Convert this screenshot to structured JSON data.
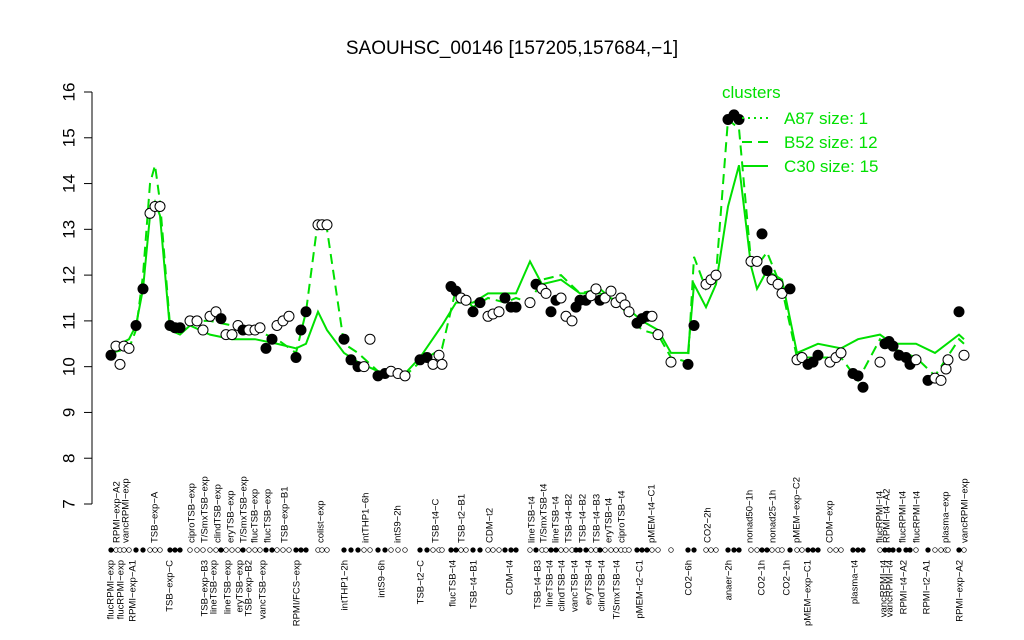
{
  "chart_data": {
    "type": "scatter",
    "title": "SAOUHSC_00146 [157205,157684,−1]",
    "ylim": [
      7,
      16
    ],
    "yticks": [
      7,
      8,
      9,
      10,
      11,
      12,
      13,
      14,
      15,
      16
    ],
    "xlim": [
      0,
      860
    ],
    "x": [
      3,
      8,
      12,
      16,
      21,
      28,
      35,
      42,
      47,
      52,
      62,
      67,
      72,
      82,
      89,
      95,
      102,
      108,
      113,
      118,
      124,
      130,
      135,
      141,
      147,
      152,
      158,
      164,
      169,
      175,
      181,
      188,
      193,
      198,
      210,
      214,
      219,
      236,
      243,
      250,
      256,
      262,
      270,
      277,
      283,
      290,
      297,
      312,
      319,
      325,
      331,
      334,
      343,
      348,
      353,
      358,
      365,
      372,
      380,
      385,
      391,
      397,
      403,
      408,
      422,
      428,
      434,
      438,
      443,
      448,
      453,
      458,
      464,
      468,
      472,
      478,
      483,
      488,
      492,
      497,
      503,
      508,
      513,
      517,
      521,
      529,
      534,
      539,
      544,
      550,
      563,
      580,
      586,
      598,
      603,
      608,
      620,
      626,
      631,
      643,
      649,
      654,
      659,
      664,
      670,
      674,
      682,
      689,
      694,
      700,
      705,
      710,
      722,
      728,
      733,
      745,
      750,
      755,
      772,
      777,
      781,
      785,
      791,
      798,
      802,
      808,
      820,
      827,
      833,
      838,
      840,
      851,
      856
    ],
    "values": [
      10.25,
      10.45,
      10.05,
      10.45,
      10.4,
      10.9,
      11.7,
      13.35,
      13.5,
      13.5,
      10.9,
      10.85,
      10.85,
      11.0,
      11.0,
      10.8,
      11.1,
      11.2,
      11.05,
      10.7,
      10.7,
      10.9,
      10.8,
      10.8,
      10.8,
      10.85,
      10.4,
      10.6,
      10.9,
      11.0,
      11.1,
      10.2,
      10.8,
      11.2,
      13.1,
      13.1,
      13.1,
      10.6,
      10.15,
      10.0,
      10.0,
      10.6,
      9.8,
      9.85,
      9.9,
      9.85,
      9.8,
      10.15,
      10.2,
      10.05,
      10.25,
      10.05,
      11.75,
      11.65,
      11.5,
      11.45,
      11.2,
      11.4,
      11.1,
      11.15,
      11.2,
      11.5,
      11.3,
      11.3,
      11.4,
      11.8,
      11.7,
      11.6,
      11.2,
      11.45,
      11.5,
      11.1,
      11.0,
      11.3,
      11.45,
      11.45,
      11.55,
      11.7,
      11.45,
      11.5,
      11.65,
      11.4,
      11.5,
      11.35,
      11.2,
      10.95,
      11.05,
      11.1,
      11.1,
      10.7,
      10.1,
      10.05,
      10.9,
      11.8,
      11.9,
      12.0,
      15.4,
      15.5,
      15.4,
      12.3,
      12.3,
      12.9,
      12.1,
      11.9,
      11.8,
      11.6,
      11.7,
      10.15,
      10.2,
      10.05,
      10.1,
      10.25,
      10.1,
      10.2,
      10.3,
      9.85,
      9.8,
      9.55,
      10.1,
      10.5,
      10.55,
      10.45,
      10.25,
      10.2,
      10.05,
      10.15,
      9.7,
      9.75,
      9.7,
      9.95,
      10.15,
      11.2,
      10.25
    ],
    "filled": [
      true,
      false,
      false,
      false,
      false,
      true,
      true,
      false,
      false,
      false,
      true,
      true,
      true,
      false,
      false,
      false,
      false,
      false,
      true,
      false,
      false,
      false,
      true,
      false,
      false,
      false,
      true,
      true,
      false,
      false,
      false,
      true,
      true,
      true,
      false,
      false,
      false,
      true,
      true,
      true,
      false,
      false,
      true,
      true,
      false,
      false,
      false,
      true,
      true,
      false,
      false,
      false,
      true,
      true,
      false,
      false,
      true,
      true,
      false,
      false,
      false,
      true,
      true,
      true,
      false,
      true,
      false,
      false,
      true,
      true,
      false,
      false,
      false,
      true,
      true,
      true,
      false,
      false,
      true,
      false,
      false,
      false,
      false,
      false,
      false,
      true,
      true,
      true,
      false,
      false,
      false,
      true,
      true,
      false,
      false,
      false,
      true,
      true,
      true,
      false,
      false,
      true,
      true,
      false,
      false,
      false,
      true,
      false,
      false,
      true,
      true,
      true,
      false,
      false,
      false,
      true,
      true,
      true,
      false,
      true,
      true,
      true,
      true,
      true,
      true,
      false,
      true,
      false,
      false,
      false,
      false,
      true,
      false
    ],
    "legend_title": "clusters",
    "series": [
      {
        "name": "A87 size: 1",
        "color": "#00e000",
        "dash": "dotted",
        "x": [
          626
        ],
        "values": [
          15.5
        ]
      },
      {
        "name": "B52 size: 12",
        "color": "#00e000",
        "dash": "dashed",
        "x": [
          3,
          12,
          21,
          28,
          35,
          42,
          47,
          52,
          62,
          72,
          82,
          102,
          124,
          147,
          169,
          188,
          198,
          210,
          219,
          236,
          250,
          270,
          297,
          312,
          334,
          348,
          365,
          380,
          397,
          408,
          422,
          434,
          453,
          472,
          492,
          513,
          534,
          550,
          563,
          580,
          586,
          598,
          608,
          620,
          631,
          643,
          649,
          659,
          674,
          689,
          710,
          733,
          750,
          772,
          785,
          808,
          827,
          851,
          856
        ],
        "values": [
          10.3,
          10.35,
          10.4,
          10.8,
          12.0,
          14.0,
          14.4,
          13.6,
          10.9,
          10.9,
          11.0,
          11.0,
          10.9,
          10.8,
          10.6,
          10.3,
          11.2,
          13.2,
          13.0,
          10.5,
          10.3,
          9.9,
          9.8,
          10.1,
          10.4,
          11.7,
          11.3,
          11.5,
          11.4,
          11.5,
          11.4,
          11.9,
          12.0,
          11.6,
          11.7,
          11.3,
          10.8,
          10.7,
          10.2,
          10.1,
          12.4,
          11.7,
          12.0,
          15.4,
          15.2,
          12.3,
          12.2,
          12.5,
          11.7,
          10.2,
          10.2,
          10.2,
          9.7,
          10.6,
          10.4,
          10.2,
          9.8,
          10.6,
          10.5
        ]
      },
      {
        "name": "C30 size: 15",
        "color": "#00e000",
        "dash": "solid",
        "x": [
          3,
          12,
          21,
          28,
          35,
          42,
          47,
          52,
          62,
          72,
          82,
          102,
          124,
          147,
          169,
          188,
          198,
          210,
          219,
          236,
          250,
          270,
          297,
          312,
          334,
          348,
          365,
          380,
          397,
          408,
          422,
          434,
          453,
          472,
          492,
          513,
          534,
          550,
          563,
          580,
          586,
          598,
          608,
          620,
          631,
          643,
          649,
          659,
          674,
          689,
          710,
          733,
          750,
          772,
          785,
          808,
          827,
          851,
          856
        ],
        "values": [
          10.4,
          10.5,
          10.6,
          10.9,
          11.7,
          13.3,
          13.6,
          13.3,
          10.8,
          10.7,
          10.9,
          10.7,
          10.6,
          10.6,
          10.5,
          10.4,
          10.5,
          11.2,
          10.8,
          10.3,
          10.1,
          9.9,
          9.85,
          10.2,
          10.9,
          11.4,
          11.4,
          11.6,
          11.6,
          11.6,
          12.3,
          11.8,
          11.9,
          11.6,
          11.6,
          11.4,
          11.0,
          10.8,
          10.3,
          10.3,
          11.8,
          11.3,
          11.8,
          13.5,
          14.4,
          12.2,
          11.7,
          12.1,
          11.9,
          10.3,
          10.5,
          10.4,
          10.6,
          10.7,
          10.5,
          10.5,
          10.3,
          10.7,
          10.6
        ]
      }
    ],
    "top_labels": [
      {
        "x": 9,
        "label": "RPMI−exp−A2"
      },
      {
        "x": 18,
        "label": "vancRPMI−exp"
      },
      {
        "x": 47,
        "label": "TSB−exp−A"
      },
      {
        "x": 84,
        "label": "ciproTSB−exp"
      },
      {
        "x": 97,
        "label": "T/SmxTSB−exp"
      },
      {
        "x": 110,
        "label": "clindTSB−exp"
      },
      {
        "x": 123,
        "label": "eryTSB−exp"
      },
      {
        "x": 136,
        "label": "T/SmxTSB−exp"
      },
      {
        "x": 147,
        "label": "flucTSB−exp"
      },
      {
        "x": 160,
        "label": "flucTSB−exp"
      },
      {
        "x": 177,
        "label": "TSB−exp−B1"
      },
      {
        "x": 213,
        "label": "colist−exp"
      },
      {
        "x": 258,
        "label": "intTHP1−6h"
      },
      {
        "x": 290,
        "label": "intS9−2h"
      },
      {
        "x": 328,
        "label": "TSB−t4−C"
      },
      {
        "x": 354,
        "label": "TSB−t2−B1"
      },
      {
        "x": 382,
        "label": "CDM−t2"
      },
      {
        "x": 424,
        "label": "lineTSB−t4"
      },
      {
        "x": 436,
        "label": "T/SmxTSB−t4"
      },
      {
        "x": 448,
        "label": "lineTSB−t4"
      },
      {
        "x": 461,
        "label": "TSB−t4−B2"
      },
      {
        "x": 475,
        "label": "TSB−t4−B2"
      },
      {
        "x": 489,
        "label": "TSB−t4−B3"
      },
      {
        "x": 501,
        "label": "eryTSB−t4"
      },
      {
        "x": 514,
        "label": "ciproTSB−t4"
      },
      {
        "x": 544,
        "label": "pMEM−t4−C1"
      },
      {
        "x": 600,
        "label": "CO2−2h"
      },
      {
        "x": 642,
        "label": "nonad50−1h"
      },
      {
        "x": 665,
        "label": "nonad25−1h"
      },
      {
        "x": 689,
        "label": "pMEM−exp−C2"
      },
      {
        "x": 722,
        "label": "CDM−exp"
      },
      {
        "x": 772,
        "label": "flucRPMI−t4"
      },
      {
        "x": 779,
        "label": "RPMI−t4−A2"
      },
      {
        "x": 795,
        "label": "flucRPMI−t4"
      },
      {
        "x": 809,
        "label": "flucRPMI−t4"
      },
      {
        "x": 838,
        "label": "plasma−exp"
      },
      {
        "x": 857,
        "label": "vancRPMI−exp"
      }
    ],
    "bottom_labels": [
      {
        "x": 3,
        "label": "flucRPMI−exp"
      },
      {
        "x": 13,
        "label": "flucRPMI−exp"
      },
      {
        "x": 25,
        "label": "RPMI−exp−A1"
      },
      {
        "x": 62,
        "label": "TSB−exp−C"
      },
      {
        "x": 97,
        "label": "TSB−exp−B3"
      },
      {
        "x": 106,
        "label": "lineTSB−exp"
      },
      {
        "x": 120,
        "label": "lineTSB−exp"
      },
      {
        "x": 132,
        "label": "eryTSB−exp"
      },
      {
        "x": 141,
        "label": "TSB−exp−B2"
      },
      {
        "x": 155,
        "label": "vancTSB−exp"
      },
      {
        "x": 189,
        "label": "RPMI/FCS−exp"
      },
      {
        "x": 237,
        "label": "intTHP1−2h"
      },
      {
        "x": 274,
        "label": "intS9−6h"
      },
      {
        "x": 313,
        "label": "TSB−t2−C"
      },
      {
        "x": 345,
        "label": "flucTSB−t4"
      },
      {
        "x": 366,
        "label": "TSB−t4−B1"
      },
      {
        "x": 402,
        "label": "CDM−t4"
      },
      {
        "x": 430,
        "label": "TSB−t4−B3"
      },
      {
        "x": 442,
        "label": "lineTSB−t4"
      },
      {
        "x": 454,
        "label": "clindTSB−t4"
      },
      {
        "x": 467,
        "label": "vancTSB−t4"
      },
      {
        "x": 481,
        "label": "eryTSB−t4"
      },
      {
        "x": 494,
        "label": "clindTSB−t4"
      },
      {
        "x": 509,
        "label": "T/SmxTSB−t4"
      },
      {
        "x": 532,
        "label": "pMEM−t2−C1"
      },
      {
        "x": 581,
        "label": "CO2−6h"
      },
      {
        "x": 621,
        "label": "anaer−2h"
      },
      {
        "x": 654,
        "label": "CO2−1h"
      },
      {
        "x": 679,
        "label": "CO2−1h"
      },
      {
        "x": 700,
        "label": "pMEM−exp−C1"
      },
      {
        "x": 747,
        "label": "plasma−t4"
      },
      {
        "x": 776,
        "label": "vancRPMI−t4"
      },
      {
        "x": 782,
        "label": "vancRPMI−t4"
      },
      {
        "x": 796,
        "label": "RPMI−t4−A2"
      },
      {
        "x": 819,
        "label": "RPMI−t2−A1"
      },
      {
        "x": 852,
        "label": "RPMI−exp−A2"
      }
    ]
  }
}
